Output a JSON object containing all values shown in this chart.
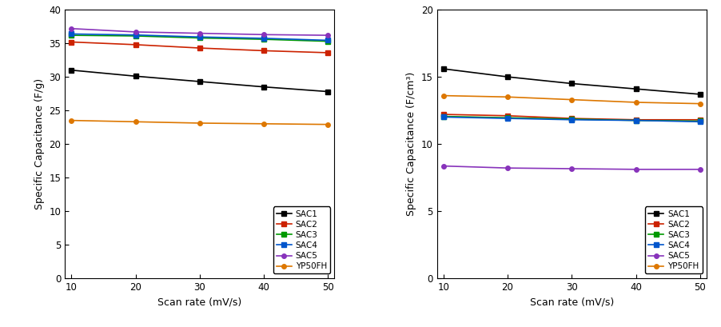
{
  "scan_rates": [
    10,
    20,
    30,
    40,
    50
  ],
  "left": {
    "ylabel": "Specific Capacitance (F/g)",
    "xlabel": "Scan rate (mV/s)",
    "ylim": [
      0,
      40
    ],
    "yticks": [
      0,
      5,
      10,
      15,
      20,
      25,
      30,
      35,
      40
    ],
    "series": {
      "SAC1": {
        "values": [
          31.0,
          30.1,
          29.3,
          28.5,
          27.8
        ],
        "color": "#000000",
        "marker": "s"
      },
      "SAC2": {
        "values": [
          35.2,
          34.8,
          34.3,
          33.9,
          33.6
        ],
        "color": "#cc2200",
        "marker": "s"
      },
      "SAC3": {
        "values": [
          36.2,
          36.1,
          35.8,
          35.6,
          35.3
        ],
        "color": "#009900",
        "marker": "s"
      },
      "SAC4": {
        "values": [
          36.4,
          36.25,
          35.95,
          35.75,
          35.45
        ],
        "color": "#0055cc",
        "marker": "s"
      },
      "SAC5": {
        "values": [
          37.2,
          36.7,
          36.5,
          36.3,
          36.2
        ],
        "color": "#8833bb",
        "marker": "o"
      },
      "YP50FH": {
        "values": [
          23.5,
          23.3,
          23.1,
          23.0,
          22.9
        ],
        "color": "#dd7700",
        "marker": "o"
      }
    }
  },
  "right": {
    "ylabel": "Specific Capacitance (F/cm³)",
    "xlabel": "Scan rate (mV/s)",
    "ylim": [
      0,
      20
    ],
    "yticks": [
      0,
      5,
      10,
      15,
      20
    ],
    "series": {
      "SAC1": {
        "values": [
          15.6,
          15.0,
          14.5,
          14.1,
          13.7
        ],
        "color": "#000000",
        "marker": "s"
      },
      "SAC2": {
        "values": [
          12.2,
          12.1,
          11.9,
          11.8,
          11.8
        ],
        "color": "#cc2200",
        "marker": "s"
      },
      "SAC3": {
        "values": [
          12.05,
          11.95,
          11.85,
          11.75,
          11.7
        ],
        "color": "#009900",
        "marker": "s"
      },
      "SAC4": {
        "values": [
          12.0,
          11.9,
          11.8,
          11.75,
          11.65
        ],
        "color": "#0055cc",
        "marker": "s"
      },
      "SAC5": {
        "values": [
          8.35,
          8.2,
          8.15,
          8.1,
          8.1
        ],
        "color": "#8833bb",
        "marker": "o"
      },
      "YP50FH": {
        "values": [
          13.6,
          13.5,
          13.3,
          13.1,
          13.0
        ],
        "color": "#dd7700",
        "marker": "o"
      }
    }
  },
  "legend_order": [
    "SAC1",
    "SAC2",
    "SAC3",
    "SAC4",
    "SAC5",
    "YP50FH"
  ],
  "linewidth": 1.2,
  "markersize": 4,
  "background_color": "#ffffff",
  "axes_bg": "#ffffff"
}
